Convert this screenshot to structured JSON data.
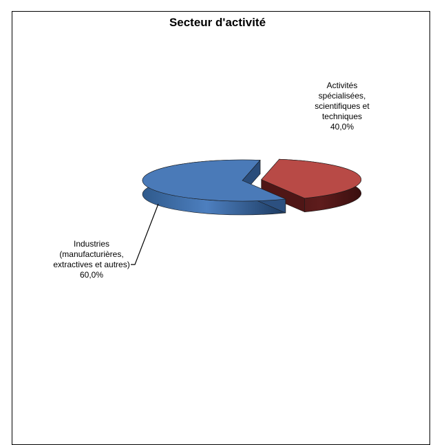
{
  "chart_data": {
    "type": "pie",
    "title": "Secteur d'activité",
    "style": "3d-exploded",
    "slices": [
      {
        "label_lines": [
          "Activités",
          "spécialisées,",
          "scientifiques et",
          "techniques"
        ],
        "value": 40.0,
        "value_label": "40,0%",
        "color": "#b84a46"
      },
      {
        "label_lines": [
          "Industries",
          "(manufacturières,",
          "extractives et autres)"
        ],
        "value": 60.0,
        "value_label": "60,0%",
        "color": "#4a7ab8"
      }
    ]
  }
}
